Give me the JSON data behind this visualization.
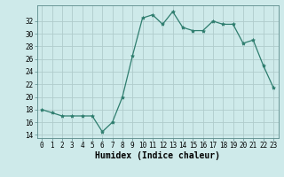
{
  "x": [
    0,
    1,
    2,
    3,
    4,
    5,
    6,
    7,
    8,
    9,
    10,
    11,
    12,
    13,
    14,
    15,
    16,
    17,
    18,
    19,
    20,
    21,
    22,
    23
  ],
  "y": [
    18,
    17.5,
    17,
    17,
    17,
    17,
    14.5,
    16,
    20,
    26.5,
    32.5,
    33,
    31.5,
    33.5,
    31,
    30.5,
    30.5,
    32,
    31.5,
    31.5,
    28.5,
    29,
    25,
    21.5
  ],
  "line_color": "#2e7d6e",
  "marker": "*",
  "marker_size": 3,
  "bg_color": "#ceeaea",
  "grid_color": "#b0cccc",
  "xlabel": "Humidex (Indice chaleur)",
  "xlim": [
    -0.5,
    23.5
  ],
  "ylim": [
    13.5,
    34.5
  ],
  "yticks": [
    14,
    16,
    18,
    20,
    22,
    24,
    26,
    28,
    30,
    32
  ],
  "xticks": [
    0,
    1,
    2,
    3,
    4,
    5,
    6,
    7,
    8,
    9,
    10,
    11,
    12,
    13,
    14,
    15,
    16,
    17,
    18,
    19,
    20,
    21,
    22,
    23
  ],
  "tick_labelsize": 5.5,
  "xlabel_fontsize": 7
}
